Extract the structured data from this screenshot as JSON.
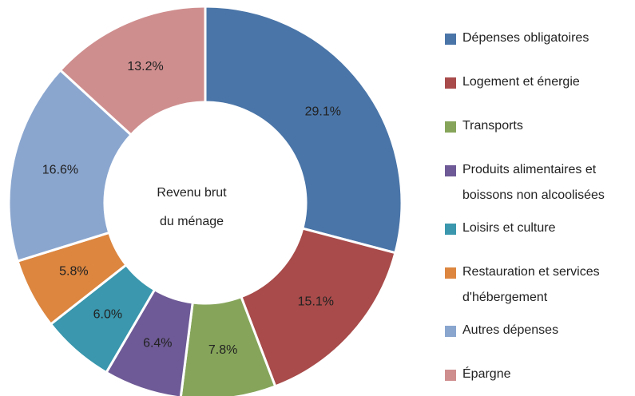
{
  "chart_data": {
    "type": "donut",
    "center_label": [
      "Revenu brut",
      "du ménage"
    ],
    "categories": [
      "Dépenses obligatoires",
      "Logement et énergie",
      "Transports",
      "Produits alimentaires et boissons non alcoolisées",
      "Loisirs et culture",
      "Restauration et services d'hébergement",
      "Autres dépenses",
      "Épargne"
    ],
    "values": [
      29.1,
      15.1,
      7.8,
      6.4,
      6.0,
      5.8,
      16.6,
      13.2
    ],
    "value_labels": [
      "29.1%",
      "15.1%",
      "7.8%",
      "6.4%",
      "6.0%",
      "5.8%",
      "16.6%",
      "13.2%"
    ],
    "colors": [
      "#4a75a8",
      "#a84b4a",
      "#86a55a",
      "#6e5a96",
      "#3a97ad",
      "#dc8640",
      "#8aa6cf",
      "#cf8e8e"
    ],
    "legend": "right"
  }
}
